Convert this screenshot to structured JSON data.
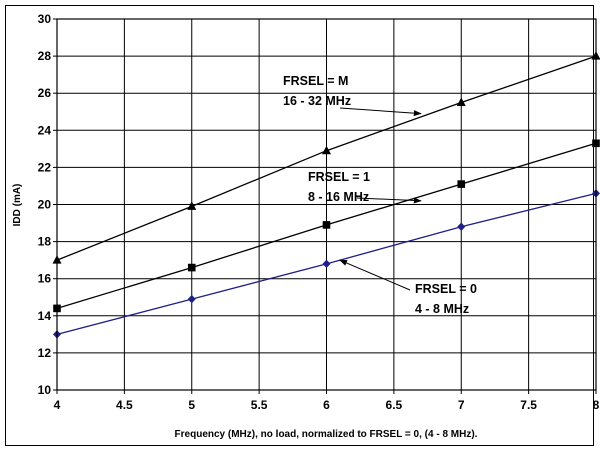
{
  "chart_data": {
    "type": "line",
    "title": "",
    "xlabel": "Frequency (MHz), no load, normalized to FRSEL = 0, (4 - 8 MHz).",
    "ylabel": "IDD (mA)",
    "xlim": [
      4,
      8
    ],
    "ylim": [
      10,
      30
    ],
    "x_ticks": [
      "4",
      "4.5",
      "5",
      "5.5",
      "6",
      "6.5",
      "7",
      "7.5",
      "8"
    ],
    "y_ticks": [
      "10",
      "12",
      "14",
      "16",
      "18",
      "20",
      "22",
      "24",
      "26",
      "28",
      "30"
    ],
    "grid": true,
    "x": [
      4,
      5,
      6,
      7,
      8
    ],
    "series": [
      {
        "values": [
          17.0,
          19.9,
          22.9,
          25.5,
          28.0
        ],
        "color": "#000000",
        "marker": "triangle"
      },
      {
        "values": [
          14.4,
          16.6,
          18.9,
          21.1,
          23.3
        ],
        "color": "#000000",
        "marker": "square"
      },
      {
        "values": [
          13.0,
          14.9,
          16.8,
          18.8,
          20.6
        ],
        "color": "#1f1f8a",
        "marker": "diamond"
      }
    ],
    "annotations": [
      {
        "lines": [
          "FRSEL = M",
          "16 - 32 MHz"
        ],
        "arrow_to": [
          6.7,
          24.9
        ]
      },
      {
        "lines": [
          "FRSEL = 1",
          "8 - 16 MHz"
        ],
        "arrow_to": [
          6.7,
          20.2
        ]
      },
      {
        "lines": [
          "FRSEL = 0",
          "4 - 8 MHz"
        ],
        "arrow_to": [
          6.1,
          17.0
        ]
      }
    ]
  }
}
